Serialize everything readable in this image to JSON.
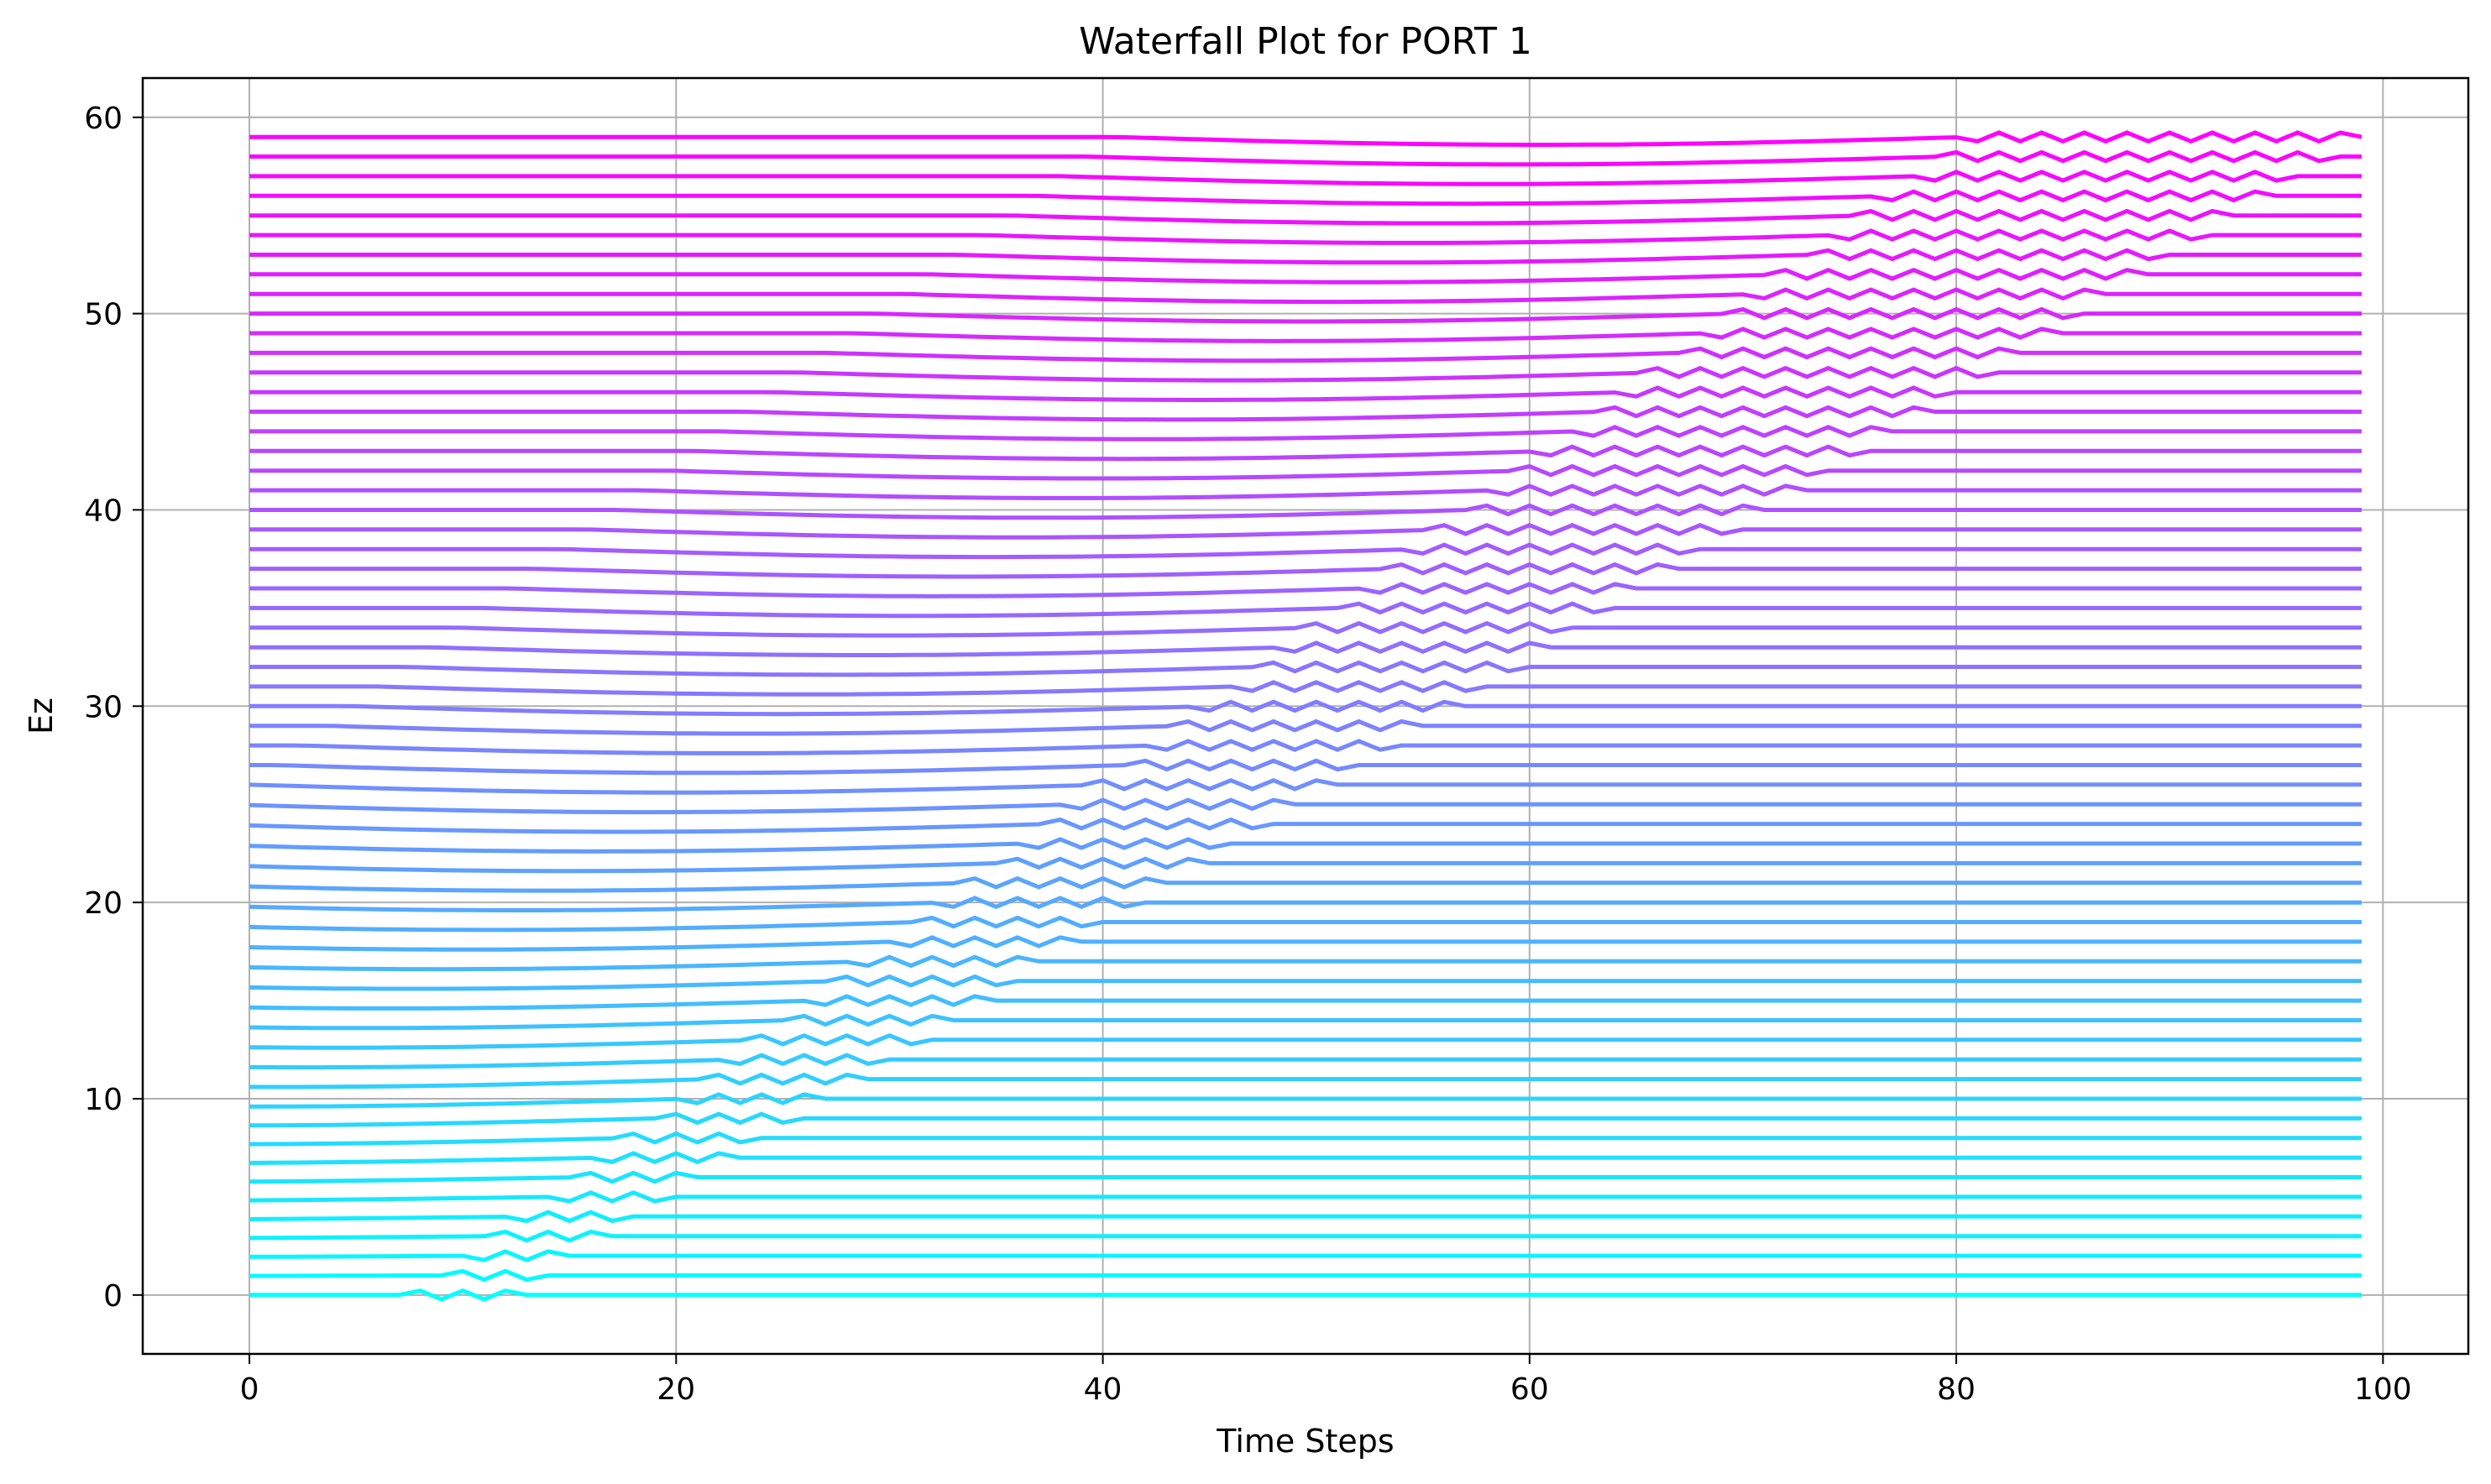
{
  "chart_data": {
    "type": "line",
    "title": "Waterfall Plot for PORT 1",
    "xlabel": "Time Steps",
    "ylabel": "Ez",
    "xlim": [
      -5,
      104
    ],
    "ylim": [
      -3,
      62
    ],
    "x_ticks": [
      0,
      20,
      40,
      60,
      80,
      100
    ],
    "y_ticks": [
      0,
      10,
      20,
      30,
      40,
      50,
      60
    ],
    "grid": true,
    "legend": "none",
    "colormap": "cool",
    "color_start": "#00ffff",
    "color_end": "#ff00ff",
    "trace_count": 60,
    "trace_offset": 1,
    "x_range": [
      0,
      99
    ],
    "wave_packet": {
      "center_start": 10,
      "center_slope": 1.35,
      "half_width_start": 2,
      "half_width_slope": 0.12,
      "ripple_period": 2,
      "ripple_amplitude": 0.22,
      "dip_amplitude": 0.4
    }
  }
}
